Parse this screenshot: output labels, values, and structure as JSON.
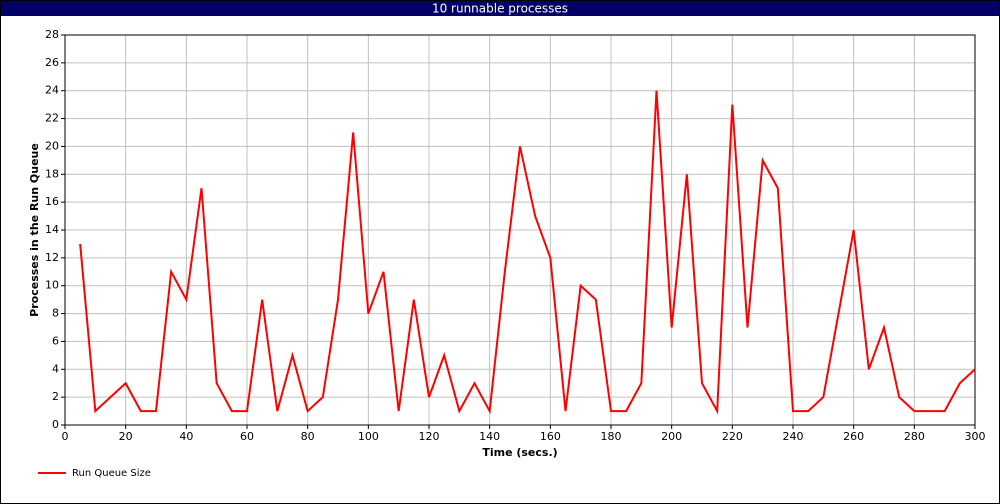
{
  "chart_data": {
    "type": "line",
    "title": "10 runnable processes",
    "x_label": "Time (secs.)",
    "y_label": "Processes in the Run Queue",
    "x": [
      5,
      10,
      15,
      20,
      25,
      30,
      35,
      40,
      45,
      50,
      55,
      60,
      65,
      70,
      75,
      80,
      85,
      90,
      95,
      100,
      105,
      110,
      115,
      120,
      125,
      130,
      135,
      140,
      145,
      150,
      155,
      160,
      165,
      170,
      175,
      180,
      185,
      190,
      195,
      200,
      205,
      210,
      215,
      220,
      225,
      230,
      235,
      240,
      245,
      250,
      255,
      260,
      265,
      270,
      275,
      280,
      285,
      290,
      295,
      300
    ],
    "series": [
      {
        "name": "Run Queue Size",
        "color": "#ff0000",
        "values": [
          13,
          1,
          2,
          3,
          1,
          1,
          11,
          9,
          17,
          3,
          1,
          1,
          9,
          1,
          5,
          1,
          2,
          9,
          21,
          8,
          11,
          1,
          9,
          2,
          5,
          1,
          3,
          1,
          11,
          20,
          15,
          12,
          1,
          10,
          9,
          1,
          1,
          3,
          24,
          7,
          18,
          3,
          1,
          23,
          7,
          19,
          17,
          1,
          1,
          2,
          8,
          14,
          4,
          7,
          2,
          1,
          1,
          1,
          3,
          4
        ]
      }
    ],
    "xlim": [
      0,
      300
    ],
    "xticks": [
      0,
      20,
      40,
      60,
      80,
      100,
      120,
      140,
      160,
      180,
      200,
      220,
      240,
      260,
      280,
      300
    ],
    "ylim": [
      0,
      28
    ],
    "yticks": [
      0,
      2,
      4,
      6,
      8,
      10,
      12,
      14,
      16,
      18,
      20,
      22,
      24,
      26,
      28
    ],
    "grid": true
  }
}
